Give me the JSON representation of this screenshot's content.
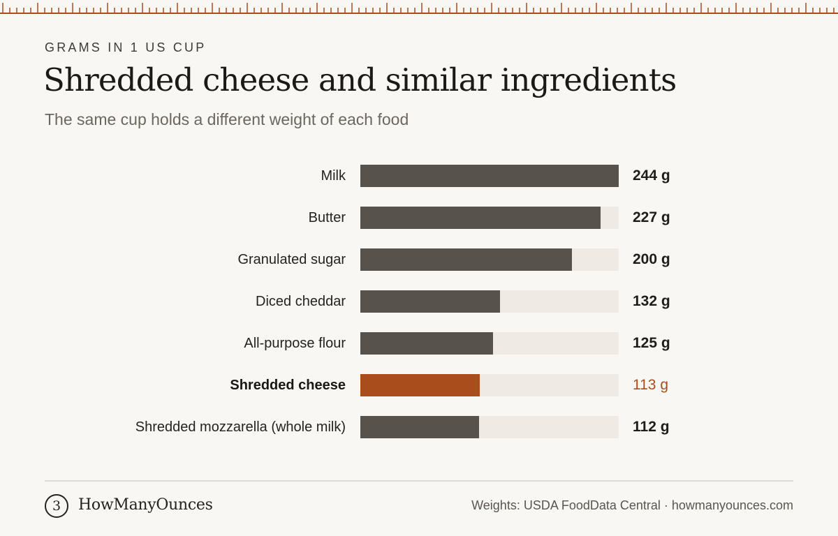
{
  "header": {
    "eyebrow": "GRAMS IN 1 US CUP",
    "title": "Shredded cheese and similar ingredients",
    "subtitle": "The same cup holds a different weight of each food"
  },
  "chart_data": {
    "type": "bar",
    "orientation": "horizontal",
    "title": "Shredded cheese and similar ingredients",
    "subtitle": "The same cup holds a different weight of each food",
    "categories": [
      "Milk",
      "Butter",
      "Granulated sugar",
      "Diced cheddar",
      "All-purpose flour",
      "Shredded cheese",
      "Shredded mozzarella (whole milk)"
    ],
    "values": [
      244,
      227,
      200,
      132,
      125,
      113,
      112
    ],
    "value_labels": [
      "244 g",
      "227 g",
      "200 g",
      "132 g",
      "125 g",
      "113 g",
      "112 g"
    ],
    "unit": "g",
    "highlight": "Shredded cheese",
    "xlim": [
      0,
      244
    ],
    "grid": false,
    "colors": {
      "bar": "#57524b",
      "highlight": "#a84e1c",
      "track": "#efebe4"
    }
  },
  "footer": {
    "logo_glyph": "3",
    "brand": "HowManyOunces",
    "source": "Weights: USDA FoodData Central · howmanyounces.com"
  },
  "colors": {
    "accent": "#a84e1c",
    "background": "#f9f7f3"
  }
}
